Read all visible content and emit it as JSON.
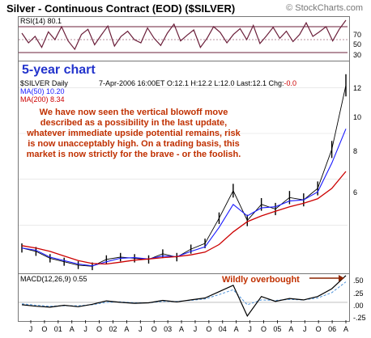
{
  "header": {
    "title": "Silver - Continuous Contract (EOD) ($SILVER)",
    "brand": "© StockCharts.com"
  },
  "rsi": {
    "label": "RSI(14) 80.1",
    "levels": [
      30,
      50,
      70
    ],
    "tick_labels": [
      "70",
      "50",
      "30"
    ]
  },
  "price_panel": {
    "chart_label": "5-year chart",
    "symbol": "$SILVER Daily",
    "quote": "7-Apr-2006 16:00ET O:12.1 H:12.2 L:12.0 Last:12.1 Chg:",
    "change": "-0.0",
    "ma50": "MA(50) 10.20",
    "ma200": "MA(200) 8.34",
    "annotation": "We have now seen the vertical blowoff move described as a possibility in the last update, whatever immediate upside potential remains, risk is now unacceptably high. On a trading basis, this market is now strictly for the brave - or the foolish.",
    "y_tick_labels": [
      "12",
      "10",
      "8",
      "6"
    ]
  },
  "macd": {
    "label": "MACD(12,26,9) 0.55",
    "annotation": "Wildly overbought",
    "y_tick_labels": [
      ".50",
      ".25",
      ".00",
      "-.25"
    ]
  },
  "x_axis": {
    "labels": [
      "J",
      "O",
      "01",
      "A",
      "J",
      "O",
      "02",
      "A",
      "J",
      "O",
      "03",
      "A",
      "J",
      "O",
      "04",
      "A",
      "J",
      "O",
      "05",
      "A",
      "J",
      "O",
      "06",
      "A"
    ]
  },
  "colors": {
    "rsi_line": "#6b1f3a",
    "price_bars": "#000000",
    "ma50": "#1a1aff",
    "ma200": "#cc0000",
    "macd_line": "#000000",
    "macd_signal": "#4a90d9",
    "annotation": "#c03000",
    "five_year_label": "#2233cc"
  },
  "chart_data": [
    {
      "type": "line",
      "title": "RSI(14) 80.1",
      "series": [
        {
          "name": "RSI(14)",
          "values": [
            60,
            45,
            55,
            38,
            62,
            50,
            70,
            48,
            35,
            58,
            66,
            42,
            57,
            71,
            40,
            55,
            63,
            50,
            45,
            68,
            52,
            41,
            60,
            74,
            48,
            57,
            65,
            38,
            52,
            70,
            61,
            45,
            58,
            67,
            50,
            72,
            44,
            56,
            69,
            52,
            63,
            47,
            58,
            76,
            55,
            62,
            70,
            48,
            66,
            80
          ]
        }
      ],
      "ylim": [
        20,
        85
      ]
    },
    {
      "type": "line",
      "title": "Silver - Continuous Contract (EOD) ($SILVER)",
      "x": [
        "Jul-2000",
        "Oct-2000",
        "Jan-2001",
        "Apr-2001",
        "Jul-2001",
        "Oct-2001",
        "Jan-2002",
        "Apr-2002",
        "Jul-2002",
        "Oct-2002",
        "Jan-2003",
        "Apr-2003",
        "Jul-2003",
        "Oct-2003",
        "Jan-2004",
        "Apr-2004",
        "Jul-2004",
        "Oct-2004",
        "Jan-2005",
        "Apr-2005",
        "Jul-2005",
        "Oct-2005",
        "Jan-2006",
        "Apr-2006"
      ],
      "series": [
        {
          "name": "$SILVER Daily",
          "values": [
            5.0,
            4.85,
            4.55,
            4.4,
            4.25,
            4.2,
            4.5,
            4.6,
            4.55,
            4.5,
            4.75,
            4.6,
            4.95,
            5.2,
            6.3,
            7.5,
            6.2,
            6.9,
            6.7,
            7.2,
            7.1,
            7.6,
            9.3,
            12.1
          ]
        },
        {
          "name": "MA(50) 10.20",
          "values": [
            5.0,
            4.9,
            4.6,
            4.45,
            4.3,
            4.22,
            4.4,
            4.55,
            4.58,
            4.52,
            4.65,
            4.62,
            4.85,
            5.05,
            5.9,
            6.9,
            6.4,
            6.75,
            6.8,
            7.05,
            7.1,
            7.45,
            8.7,
            10.2
          ]
        },
        {
          "name": "MA(200) 8.34",
          "values": [
            5.1,
            5.0,
            4.85,
            4.65,
            4.45,
            4.32,
            4.3,
            4.38,
            4.47,
            4.52,
            4.58,
            4.62,
            4.7,
            4.82,
            5.15,
            5.7,
            6.15,
            6.4,
            6.6,
            6.8,
            6.95,
            7.15,
            7.6,
            8.34
          ]
        }
      ],
      "ylim": [
        4,
        13
      ],
      "y_ticks": [
        6,
        8,
        10,
        12
      ]
    },
    {
      "type": "line",
      "title": "MACD(12,26,9) 0.55",
      "series": [
        {
          "name": "MACD(12,26,9)",
          "values": [
            -0.05,
            -0.08,
            -0.1,
            -0.06,
            -0.09,
            -0.04,
            0.03,
            0.0,
            -0.02,
            -0.01,
            0.04,
            0.01,
            0.05,
            0.09,
            0.22,
            0.35,
            -0.28,
            0.12,
            0.02,
            0.08,
            0.05,
            0.12,
            0.28,
            0.55
          ]
        },
        {
          "name": "Signal",
          "values": [
            -0.03,
            -0.06,
            -0.08,
            -0.07,
            -0.07,
            -0.05,
            0.0,
            0.01,
            -0.01,
            -0.01,
            0.02,
            0.02,
            0.04,
            0.07,
            0.16,
            0.26,
            -0.05,
            0.05,
            0.04,
            0.06,
            0.05,
            0.09,
            0.2,
            0.42
          ]
        }
      ],
      "ylim": [
        -0.35,
        0.58
      ],
      "y_ticks": [
        -0.25,
        0,
        0.25,
        0.5
      ]
    }
  ]
}
